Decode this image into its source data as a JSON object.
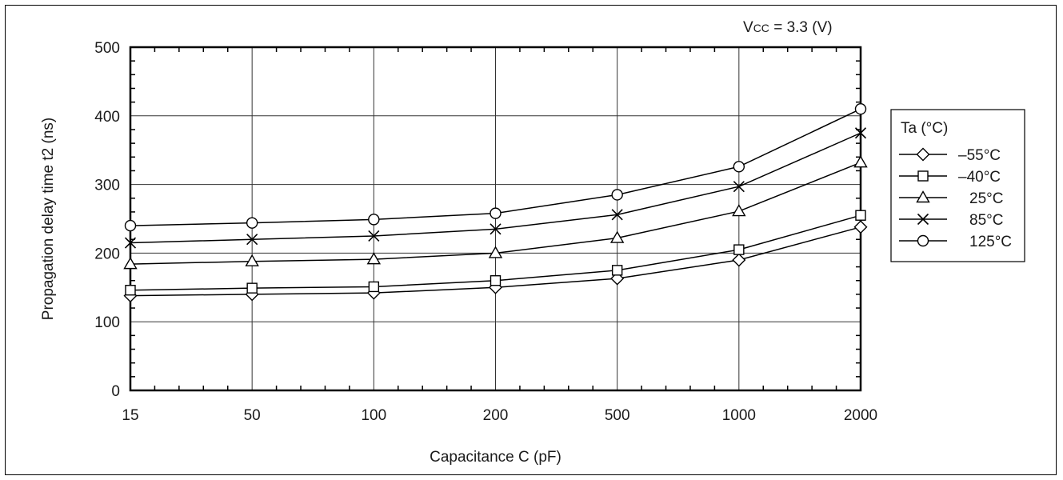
{
  "chart_data": {
    "type": "line",
    "annotation": {
      "prefix": "V",
      "sub": "CC",
      "suffix": " = 3.3 (V)"
    },
    "xlabel": "Capacitance C (pF)",
    "ylabel": "Propagation delay time t2 (ns)",
    "categories": [
      "15",
      "50",
      "100",
      "200",
      "500",
      "1000",
      "2000"
    ],
    "ylim": [
      0,
      500
    ],
    "yticks": [
      "0",
      "100",
      "200",
      "300",
      "400",
      "500"
    ],
    "grid": true,
    "legend": {
      "title": "Ta (°C)",
      "placement": "right"
    },
    "series": [
      {
        "name": "–55°C",
        "marker": "diamond",
        "values": [
          138,
          140,
          142,
          150,
          163,
          190,
          238
        ]
      },
      {
        "name": "–40°C",
        "marker": "square",
        "values": [
          146,
          149,
          151,
          160,
          175,
          205,
          255
        ]
      },
      {
        "name": "25°C",
        "marker": "triangle",
        "values": [
          184,
          188,
          191,
          200,
          222,
          261,
          332
        ]
      },
      {
        "name": "85°C",
        "marker": "x",
        "values": [
          215,
          220,
          225,
          235,
          256,
          297,
          375
        ]
      },
      {
        "name": "125°C",
        "marker": "circle",
        "values": [
          240,
          244,
          249,
          258,
          285,
          326,
          410
        ]
      }
    ]
  }
}
